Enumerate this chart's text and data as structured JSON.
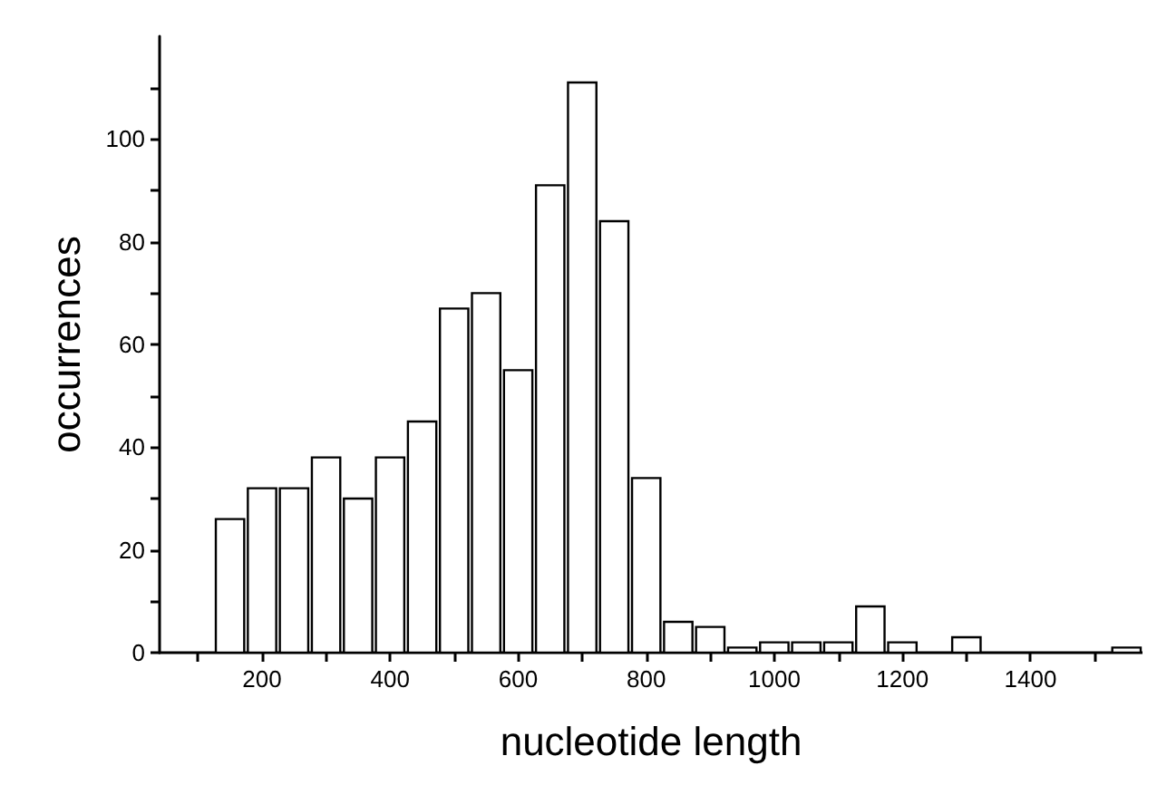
{
  "chart_data": {
    "type": "histogram",
    "xlabel": "nucleotide length",
    "ylabel": "occurrences",
    "bins": [
      125,
      175,
      225,
      275,
      325,
      375,
      425,
      475,
      525,
      575,
      625,
      675,
      725,
      775,
      825,
      875,
      925,
      975,
      1025,
      1075,
      1125,
      1175,
      1225,
      1275,
      1325,
      1375,
      1425,
      1475,
      1525,
      1575
    ],
    "values": [
      26,
      32,
      32,
      38,
      30,
      38,
      45,
      67,
      70,
      55,
      91,
      111,
      84,
      34,
      6,
      5,
      1,
      2,
      2,
      2,
      9,
      2,
      0,
      3,
      0,
      0,
      0,
      0,
      1
    ],
    "color": "#ffffff",
    "xlim": [
      40,
      1575
    ],
    "xticks": [
      {
        "value": 100,
        "label": null
      },
      200,
      {
        "value": 300,
        "label": null
      },
      400,
      {
        "value": 500,
        "label": null
      },
      600,
      {
        "value": 700,
        "label": null
      },
      800,
      {
        "value": 900,
        "label": null
      },
      1000,
      {
        "value": 1100,
        "label": null
      },
      1200,
      {
        "value": 1300,
        "label": null
      },
      1400,
      {
        "value": 1500,
        "label": null
      }
    ],
    "ylim": [
      0,
      120
    ],
    "yticks": [
      0,
      {
        "value": 10,
        "label": null
      },
      20,
      {
        "value": 30,
        "label": null
      },
      40,
      {
        "value": 50,
        "label": null
      },
      60,
      {
        "value": 70,
        "label": null
      },
      80,
      {
        "value": 90,
        "label": null
      },
      100,
      {
        "value": 110,
        "label": null
      }
    ],
    "grid": false
  }
}
